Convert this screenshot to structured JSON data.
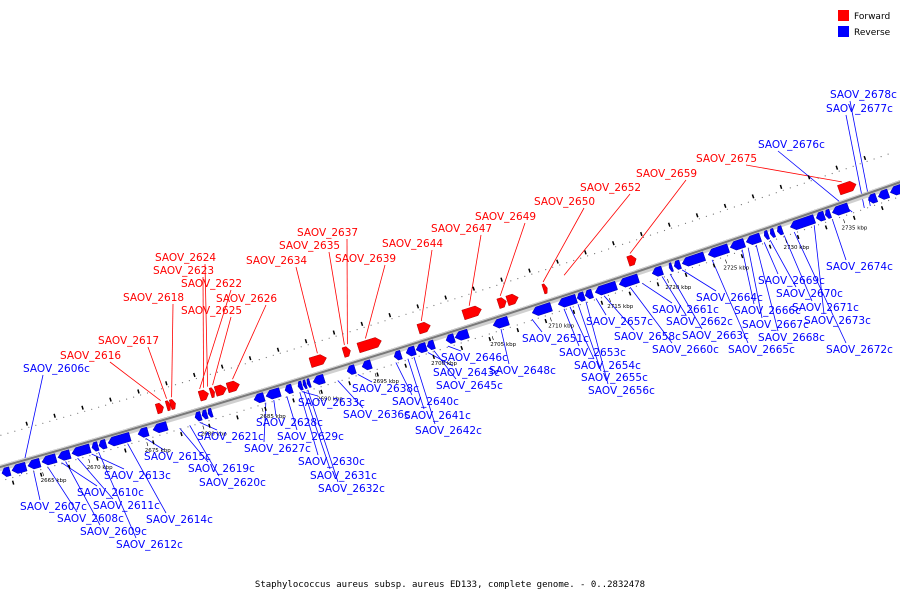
{
  "caption": "Staphylococcus aureus subsp. aureus ED133, complete genome. - 0..2832478",
  "legend": [
    {
      "label": "Forward",
      "color": "#ff0000"
    },
    {
      "label": "Reverse",
      "color": "#0000ff"
    }
  ],
  "colors": {
    "forward": "#ff0000",
    "reverse": "#0000ff",
    "axis": "#808080"
  },
  "kbp_ticks": [
    "2665 kbp",
    "2670 kbp",
    "2675 kbp",
    "2680 kbp",
    "2685 kbp",
    "2690 kbp",
    "2695 kbp",
    "2700 kbp",
    "2705 kbp",
    "2710 kbp",
    "2715 kbp",
    "2720 kbp",
    "2725 kbp",
    "2730 kbp",
    "2735 kbp"
  ],
  "forward_genes": [
    "SAOV_2616",
    "SAOV_2617",
    "SAOV_2618",
    "SAOV_2622",
    "SAOV_2623",
    "SAOV_2624",
    "SAOV_2625",
    "SAOV_2626",
    "SAOV_2634",
    "SAOV_2635",
    "SAOV_2637",
    "SAOV_2639",
    "SAOV_2644",
    "SAOV_2647",
    "SAOV_2649",
    "SAOV_2650",
    "SAOV_2652",
    "SAOV_2659",
    "SAOV_2675"
  ],
  "reverse_genes": [
    "SAOV_2606c",
    "SAOV_2607c",
    "SAOV_2608c",
    "SAOV_2609c",
    "SAOV_2610c",
    "SAOV_2611c",
    "SAOV_2612c",
    "SAOV_2613c",
    "SAOV_2614c",
    "SAOV_2615c",
    "SAOV_2619c",
    "SAOV_2620c",
    "SAOV_2621c",
    "SAOV_2627c",
    "SAOV_2628c",
    "SAOV_2629c",
    "SAOV_2630c",
    "SAOV_2631c",
    "SAOV_2632c",
    "SAOV_2633c",
    "SAOV_2636c",
    "SAOV_2638c",
    "SAOV_2640c",
    "SAOV_2641c",
    "SAOV_2642c",
    "SAOV_2643c",
    "SAOV_2645c",
    "SAOV_2646c",
    "SAOV_2648c",
    "SAOV_2651c",
    "SAOV_2653c",
    "SAOV_2654c",
    "SAOV_2655c",
    "SAOV_2656c",
    "SAOV_2657c",
    "SAOV_2658c",
    "SAOV_2660c",
    "SAOV_2661c",
    "SAOV_2662c",
    "SAOV_2663c",
    "SAOV_2664c",
    "SAOV_2665c",
    "SAOV_2666c",
    "SAOV_2667c",
    "SAOV_2668c",
    "SAOV_2669c",
    "SAOV_2670c",
    "SAOV_2671c",
    "SAOV_2672c",
    "SAOV_2673c",
    "SAOV_2674c",
    "SAOV_2676c",
    "SAOV_2677c",
    "SAOV_2678c"
  ]
}
